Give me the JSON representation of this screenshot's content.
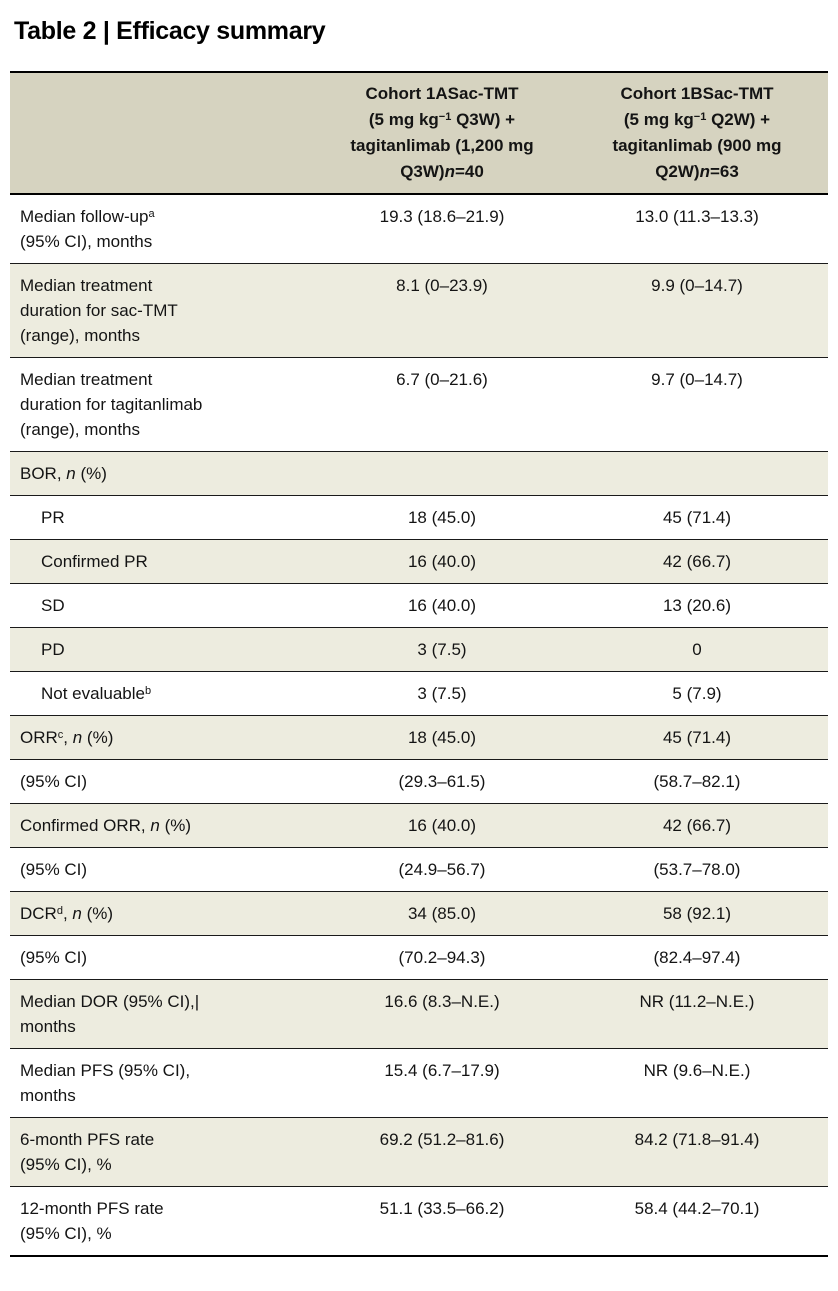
{
  "title": "Table 2 | Efficacy summary",
  "colors": {
    "header_bg": "#d6d3c0",
    "row_alt_bg": "#edecdf",
    "rule": "#000000",
    "text": "#141414"
  },
  "table": {
    "columns": [
      {
        "label": ""
      },
      {
        "label": "Cohort 1ASac-TMT\n(5 mg kg^−1^ Q3W) +\ntagitanlimab (1,200 mg\nQ3W)*n*=40"
      },
      {
        "label": "Cohort 1BSac-TMT\n(5 mg kg^−1^ Q2W) +\ntagitanlimab (900 mg\nQ2W)*n*=63"
      }
    ],
    "rows": [
      {
        "label": "Median follow-up^a^\n(95% CI), months",
        "indent": false,
        "values": [
          "19.3 (18.6–21.9)",
          "13.0 (11.3–13.3)"
        ]
      },
      {
        "label": "Median treatment\nduration for sac-TMT\n(range), months",
        "indent": false,
        "values": [
          "8.1 (0–23.9)",
          "9.9 (0–14.7)"
        ]
      },
      {
        "label": "Median treatment\nduration for tagitanlimab\n(range), months",
        "indent": false,
        "values": [
          "6.7 (0–21.6)",
          "9.7 (0–14.7)"
        ]
      },
      {
        "label": "BOR, *n* (%)",
        "indent": false,
        "values": [
          "",
          ""
        ]
      },
      {
        "label": "PR",
        "indent": true,
        "values": [
          "18 (45.0)",
          "45 (71.4)"
        ]
      },
      {
        "label": "Confirmed PR",
        "indent": true,
        "values": [
          "16 (40.0)",
          "42 (66.7)"
        ]
      },
      {
        "label": "SD",
        "indent": true,
        "values": [
          "16 (40.0)",
          "13 (20.6)"
        ]
      },
      {
        "label": "PD",
        "indent": true,
        "values": [
          "3 (7.5)",
          "0"
        ]
      },
      {
        "label": "Not evaluable^b^",
        "indent": true,
        "values": [
          "3 (7.5)",
          "5 (7.9)"
        ]
      },
      {
        "label": "ORR^c^, *n* (%)",
        "indent": false,
        "values": [
          "18 (45.0)",
          "45 (71.4)"
        ]
      },
      {
        "label": "(95% CI)",
        "indent": false,
        "values": [
          "(29.3–61.5)",
          "(58.7–82.1)"
        ]
      },
      {
        "label": "Confirmed ORR, *n* (%)",
        "indent": false,
        "values": [
          "16 (40.0)",
          "42 (66.7)"
        ]
      },
      {
        "label": "(95% CI)",
        "indent": false,
        "values": [
          "(24.9–56.7)",
          "(53.7–78.0)"
        ]
      },
      {
        "label": "DCR^d^, *n* (%)",
        "indent": false,
        "values": [
          "34 (85.0)",
          "58 (92.1)"
        ]
      },
      {
        "label": "(95% CI)",
        "indent": false,
        "values": [
          "(70.2–94.3)",
          "(82.4–97.4)"
        ]
      },
      {
        "label": "Median DOR (95% CI),|\nmonths",
        "indent": false,
        "values": [
          "16.6 (8.3–N.E.)",
          "NR (11.2–N.E.)"
        ]
      },
      {
        "label": "Median PFS (95% CI),\nmonths",
        "indent": false,
        "values": [
          "15.4 (6.7–17.9)",
          "NR (9.6–N.E.)"
        ]
      },
      {
        "label": "6-month PFS rate\n(95% CI), %",
        "indent": false,
        "values": [
          "69.2 (51.2–81.6)",
          "84.2 (71.8–91.4)"
        ]
      },
      {
        "label": "12-month PFS rate\n(95% CI), %",
        "indent": false,
        "values": [
          "51.1 (33.5–66.2)",
          "58.4 (44.2–70.1)"
        ]
      }
    ]
  }
}
